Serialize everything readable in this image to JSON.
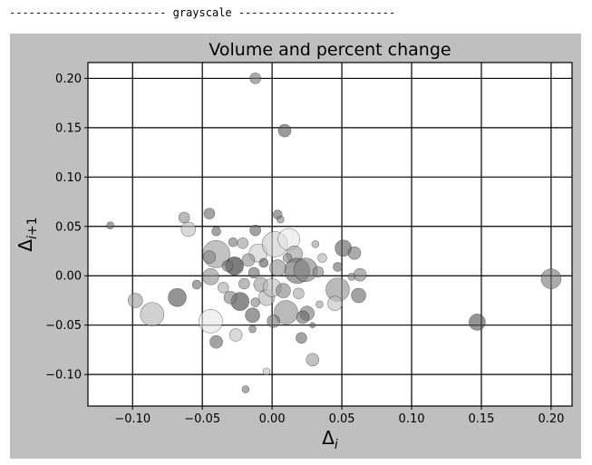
{
  "header": {
    "text": "------------------------ grayscale ------------------------"
  },
  "chart_data": {
    "type": "scatter",
    "title": "Volume and percent change",
    "xlabel": "Δ_i",
    "ylabel": "Δ_i+1",
    "xlim": [
      -0.132,
      0.215
    ],
    "ylim": [
      -0.132,
      0.216
    ],
    "grid": true,
    "x_ticks": [
      {
        "value": -0.1,
        "label": "−0.10"
      },
      {
        "value": -0.05,
        "label": "−0.05"
      },
      {
        "value": 0.0,
        "label": "0.00"
      },
      {
        "value": 0.05,
        "label": "0.05"
      },
      {
        "value": 0.1,
        "label": "0.10"
      },
      {
        "value": 0.15,
        "label": "0.15"
      },
      {
        "value": 0.2,
        "label": "0.20"
      }
    ],
    "y_ticks": [
      {
        "value": -0.1,
        "label": "−0.10"
      },
      {
        "value": -0.05,
        "label": "−0.05"
      },
      {
        "value": 0.0,
        "label": "0.00"
      },
      {
        "value": 0.05,
        "label": "0.05"
      },
      {
        "value": 0.1,
        "label": "0.10"
      },
      {
        "value": 0.15,
        "label": "0.15"
      },
      {
        "value": 0.2,
        "label": "0.20"
      }
    ],
    "points": [
      {
        "x": -0.012,
        "y": 0.2,
        "r": 6,
        "shade": 0.45
      },
      {
        "x": 0.009,
        "y": 0.147,
        "r": 7,
        "shade": 0.35
      },
      {
        "x": -0.116,
        "y": 0.051,
        "r": 4,
        "shade": 0.4
      },
      {
        "x": -0.063,
        "y": 0.059,
        "r": 6,
        "shade": 0.55
      },
      {
        "x": -0.045,
        "y": 0.063,
        "r": 6,
        "shade": 0.4
      },
      {
        "x": -0.06,
        "y": 0.047,
        "r": 8,
        "shade": 0.75
      },
      {
        "x": -0.04,
        "y": 0.045,
        "r": 5,
        "shade": 0.4
      },
      {
        "x": -0.04,
        "y": 0.022,
        "r": 15,
        "shade": 0.6
      },
      {
        "x": -0.045,
        "y": 0.019,
        "r": 7,
        "shade": 0.5
      },
      {
        "x": -0.027,
        "y": 0.01,
        "r": 10,
        "shade": 0.15
      },
      {
        "x": -0.044,
        "y": -0.001,
        "r": 9,
        "shade": 0.55
      },
      {
        "x": -0.054,
        "y": -0.009,
        "r": 5,
        "shade": 0.4
      },
      {
        "x": -0.098,
        "y": -0.025,
        "r": 8,
        "shade": 0.6
      },
      {
        "x": -0.068,
        "y": -0.022,
        "r": 10,
        "shade": 0.3
      },
      {
        "x": -0.086,
        "y": -0.039,
        "r": 13,
        "shade": 0.7
      },
      {
        "x": -0.044,
        "y": -0.046,
        "r": 13,
        "shade": 0.9
      },
      {
        "x": -0.04,
        "y": -0.067,
        "r": 7,
        "shade": 0.4
      },
      {
        "x": -0.026,
        "y": -0.06,
        "r": 7,
        "shade": 0.75
      },
      {
        "x": -0.023,
        "y": -0.026,
        "r": 10,
        "shade": 0.25
      },
      {
        "x": -0.03,
        "y": -0.022,
        "r": 7,
        "shade": 0.5
      },
      {
        "x": -0.014,
        "y": -0.04,
        "r": 8,
        "shade": 0.35
      },
      {
        "x": -0.012,
        "y": 0.046,
        "r": 6,
        "shade": 0.4
      },
      {
        "x": -0.01,
        "y": 0.023,
        "r": 10,
        "shade": 0.8
      },
      {
        "x": 0.002,
        "y": 0.032,
        "r": 14,
        "shade": 0.8
      },
      {
        "x": 0.004,
        "y": 0.062,
        "r": 5,
        "shade": 0.4
      },
      {
        "x": 0.006,
        "y": 0.057,
        "r": 4,
        "shade": 0.5
      },
      {
        "x": 0.012,
        "y": 0.037,
        "r": 12,
        "shade": 0.9
      },
      {
        "x": 0.016,
        "y": 0.022,
        "r": 9,
        "shade": 0.6
      },
      {
        "x": 0.018,
        "y": 0.005,
        "r": 14,
        "shade": 0.4
      },
      {
        "x": 0.024,
        "y": 0.006,
        "r": 13,
        "shade": 0.5
      },
      {
        "x": 0.031,
        "y": 0.032,
        "r": 4,
        "shade": 0.6
      },
      {
        "x": 0.036,
        "y": 0.018,
        "r": 5,
        "shade": 0.7
      },
      {
        "x": 0.033,
        "y": 0.004,
        "r": 6,
        "shade": 0.5
      },
      {
        "x": 0.047,
        "y": 0.009,
        "r": 5,
        "shade": 0.4
      },
      {
        "x": 0.051,
        "y": 0.028,
        "r": 9,
        "shade": 0.35
      },
      {
        "x": 0.059,
        "y": 0.023,
        "r": 7,
        "shade": 0.45
      },
      {
        "x": 0.063,
        "y": 0.001,
        "r": 7,
        "shade": 0.5
      },
      {
        "x": 0.057,
        "y": -0.001,
        "r": 4,
        "shade": 0.5
      },
      {
        "x": 0.047,
        "y": -0.014,
        "r": 13,
        "shade": 0.55
      },
      {
        "x": 0.045,
        "y": -0.028,
        "r": 8,
        "shade": 0.75
      },
      {
        "x": 0.062,
        "y": -0.02,
        "r": 8,
        "shade": 0.4
      },
      {
        "x": 0.034,
        "y": -0.029,
        "r": 4,
        "shade": 0.6
      },
      {
        "x": 0.025,
        "y": -0.038,
        "r": 8,
        "shade": 0.45
      },
      {
        "x": 0.022,
        "y": -0.042,
        "r": 7,
        "shade": 0.4
      },
      {
        "x": 0.029,
        "y": -0.05,
        "r": 3,
        "shade": 0.4
      },
      {
        "x": 0.021,
        "y": -0.063,
        "r": 6,
        "shade": 0.4
      },
      {
        "x": 0.029,
        "y": -0.085,
        "r": 7,
        "shade": 0.6
      },
      {
        "x": 0.01,
        "y": -0.037,
        "r": 13,
        "shade": 0.55
      },
      {
        "x": 0.001,
        "y": -0.046,
        "r": 7,
        "shade": 0.45
      },
      {
        "x": -0.004,
        "y": -0.022,
        "r": 9,
        "shade": 0.7
      },
      {
        "x": -0.008,
        "y": -0.009,
        "r": 8,
        "shade": 0.6
      },
      {
        "x": 0.0,
        "y": -0.012,
        "r": 10,
        "shade": 0.75
      },
      {
        "x": 0.008,
        "y": -0.015,
        "r": 8,
        "shade": 0.5
      },
      {
        "x": 0.004,
        "y": 0.008,
        "r": 9,
        "shade": 0.55
      },
      {
        "x": -0.013,
        "y": 0.003,
        "r": 6,
        "shade": 0.4
      },
      {
        "x": -0.017,
        "y": 0.016,
        "r": 7,
        "shade": 0.55
      },
      {
        "x": -0.02,
        "y": -0.008,
        "r": 6,
        "shade": 0.55
      },
      {
        "x": -0.032,
        "y": 0.01,
        "r": 6,
        "shade": 0.45
      },
      {
        "x": -0.035,
        "y": -0.012,
        "r": 6,
        "shade": 0.65
      },
      {
        "x": -0.028,
        "y": 0.034,
        "r": 5,
        "shade": 0.45
      },
      {
        "x": -0.021,
        "y": 0.033,
        "r": 6,
        "shade": 0.6
      },
      {
        "x": -0.006,
        "y": 0.013,
        "r": 5,
        "shade": 0.35
      },
      {
        "x": 0.011,
        "y": 0.018,
        "r": 5,
        "shade": 0.5
      },
      {
        "x": 0.019,
        "y": -0.018,
        "r": 6,
        "shade": 0.65
      },
      {
        "x": -0.012,
        "y": -0.027,
        "r": 5,
        "shade": 0.5
      },
      {
        "x": -0.014,
        "y": -0.054,
        "r": 4,
        "shade": 0.45
      },
      {
        "x": -0.004,
        "y": -0.097,
        "r": 4,
        "shade": 0.75
      },
      {
        "x": -0.019,
        "y": -0.115,
        "r": 4,
        "shade": 0.45
      },
      {
        "x": 0.147,
        "y": -0.047,
        "r": 9,
        "shade": 0.3
      },
      {
        "x": 0.2,
        "y": -0.003,
        "r": 11,
        "shade": 0.45
      }
    ]
  }
}
